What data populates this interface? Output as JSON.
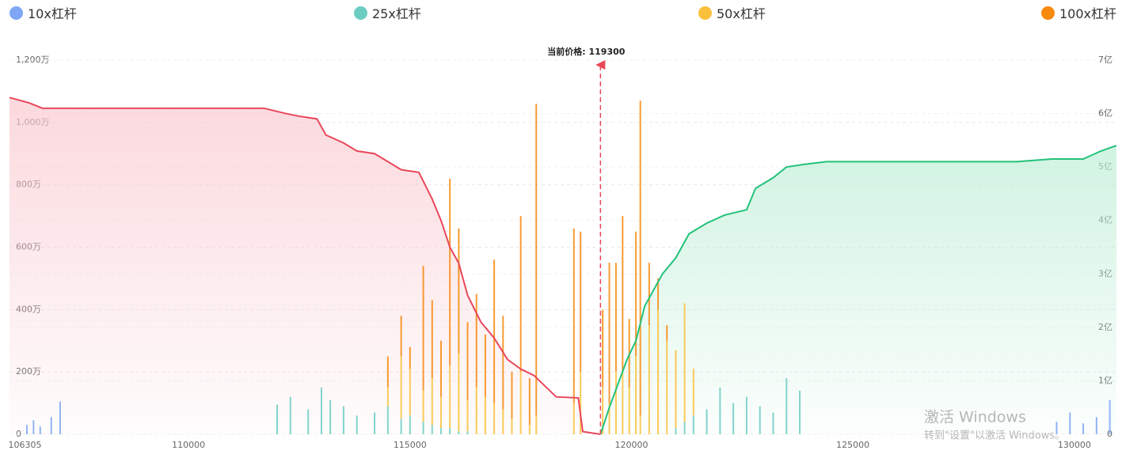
{
  "chart_data": {
    "type": "bar",
    "stacked": true,
    "x": [
      106350,
      106500,
      106650,
      106900,
      107100,
      112000,
      112300,
      112700,
      113000,
      113200,
      113500,
      113800,
      114200,
      114500,
      114800,
      115000,
      115300,
      115500,
      115700,
      115900,
      116100,
      116300,
      116500,
      116700,
      116900,
      117100,
      117300,
      117500,
      117700,
      117850,
      118700,
      118850,
      119350,
      119500,
      119650,
      119800,
      119950,
      120100,
      120200,
      120400,
      120600,
      120800,
      121000,
      121200,
      121400,
      121700,
      122000,
      122300,
      122600,
      122900,
      123200,
      123500,
      123800,
      129600,
      129900,
      130200,
      130500,
      130800
    ],
    "series": [
      {
        "name": "10x杠杆",
        "color": "#7ea6f4",
        "values": [
          30,
          45,
          25,
          55,
          105,
          0,
          0,
          0,
          0,
          0,
          0,
          0,
          0,
          0,
          0,
          0,
          0,
          0,
          0,
          0,
          0,
          0,
          0,
          0,
          0,
          0,
          0,
          0,
          0,
          0,
          0,
          0,
          0,
          0,
          0,
          0,
          0,
          0,
          0,
          0,
          0,
          0,
          0,
          0,
          0,
          0,
          0,
          0,
          0,
          0,
          0,
          0,
          0,
          40,
          70,
          35,
          55,
          110
        ]
      },
      {
        "name": "25x杠杆",
        "color": "#6dcdc3",
        "values": [
          0,
          0,
          0,
          0,
          0,
          95,
          120,
          80,
          150,
          110,
          90,
          60,
          70,
          90,
          50,
          60,
          40,
          30,
          20,
          20,
          10,
          10,
          0,
          0,
          0,
          0,
          0,
          0,
          0,
          0,
          0,
          0,
          0,
          0,
          0,
          0,
          0,
          0,
          0,
          0,
          0,
          0,
          20,
          40,
          60,
          80,
          150,
          100,
          120,
          90,
          70,
          180,
          140,
          0,
          0,
          0,
          0,
          0
        ]
      },
      {
        "name": "50x杠杆",
        "color": "#fbc13c",
        "values": [
          0,
          0,
          0,
          0,
          0,
          0,
          0,
          0,
          0,
          0,
          0,
          0,
          0,
          60,
          200,
          150,
          100,
          150,
          100,
          200,
          250,
          100,
          150,
          120,
          100,
          80,
          50,
          200,
          30,
          60,
          100,
          200,
          150,
          100,
          200,
          200,
          150,
          250,
          60,
          350,
          400,
          300,
          250,
          380,
          150,
          0,
          0,
          0,
          0,
          0,
          0,
          0,
          0,
          0,
          0,
          0,
          0,
          0
        ]
      },
      {
        "name": "100x杠杆",
        "color": "#f7890f",
        "values": [
          0,
          0,
          0,
          0,
          0,
          0,
          0,
          0,
          0,
          0,
          0,
          0,
          0,
          100,
          130,
          70,
          400,
          250,
          180,
          600,
          400,
          250,
          300,
          200,
          460,
          300,
          150,
          500,
          150,
          1000,
          560,
          450,
          250,
          450,
          350,
          500,
          220,
          400,
          1010,
          200,
          100,
          50,
          0,
          0,
          0,
          0,
          0,
          0,
          0,
          0,
          0,
          0,
          0,
          0,
          0,
          0,
          0,
          0
        ]
      }
    ],
    "curves": [
      {
        "color": "#e8475a",
        "fill": "#f9c9cf",
        "axis": "y2",
        "x": [
          105957,
          106400,
          106700,
          108000,
          111700,
          112200,
          112500,
          112900,
          113100,
          113500,
          113800,
          114200,
          114500,
          114800,
          115200,
          115500,
          115700,
          115900,
          116100,
          116300,
          116600,
          116900,
          117200,
          117500,
          117800,
          118300,
          118800,
          118900,
          119300
        ],
        "values": [
          6.3,
          6.2,
          6.1,
          6.1,
          6.1,
          6.0,
          5.95,
          5.9,
          5.6,
          5.45,
          5.3,
          5.25,
          5.1,
          4.95,
          4.9,
          4.4,
          4.0,
          3.5,
          3.2,
          2.6,
          2.1,
          1.8,
          1.4,
          1.22,
          1.1,
          0.7,
          0.68,
          0.05,
          0
        ]
      },
      {
        "color": "#22c27a",
        "fill": "#bdeed6",
        "axis": "y2",
        "x": [
          119300,
          119500,
          119900,
          120100,
          120300,
          120700,
          121000,
          121300,
          121700,
          122100,
          122600,
          122800,
          123200,
          123500,
          123900,
          124400,
          128700,
          129500,
          130200,
          130600,
          130950
        ],
        "values": [
          0,
          0.5,
          1.4,
          1.75,
          2.4,
          3.0,
          3.3,
          3.75,
          3.95,
          4.1,
          4.2,
          4.6,
          4.8,
          5.0,
          5.05,
          5.1,
          5.1,
          5.15,
          5.15,
          5.3,
          5.4
        ]
      }
    ],
    "xlim": [
      105957,
      130950
    ],
    "xticks": [
      106305,
      110000,
      115000,
      120000,
      125000,
      130000
    ],
    "ylim": [
      0,
      1200
    ],
    "yticks": [
      0,
      {
        "value": 200,
        "label": "200万"
      },
      {
        "value": 400,
        "label": "400万"
      },
      {
        "value": 600,
        "label": "600万"
      },
      {
        "value": 800,
        "label": "800万"
      },
      {
        "value": 1000,
        "label": "1,000万"
      },
      {
        "value": 1200,
        "label": "1,200万"
      }
    ],
    "y2lim": [
      0,
      7
    ],
    "y2ticks": [
      0,
      {
        "value": 1,
        "label": "1亿"
      },
      {
        "value": 2,
        "label": "2亿"
      },
      {
        "value": 3,
        "label": "3亿"
      },
      {
        "value": 4,
        "label": "4亿"
      },
      {
        "value": 5,
        "label": "5亿"
      },
      {
        "value": 6,
        "label": "6亿"
      },
      {
        "value": 7,
        "label": "7亿"
      }
    ],
    "grid": true,
    "annotation": {
      "text": "当前价格: 119300",
      "value": 119300,
      "color": "#e8475a"
    },
    "watermark": [
      "激活 Windows",
      "转到\"设置\"以激活 Windows。"
    ]
  }
}
